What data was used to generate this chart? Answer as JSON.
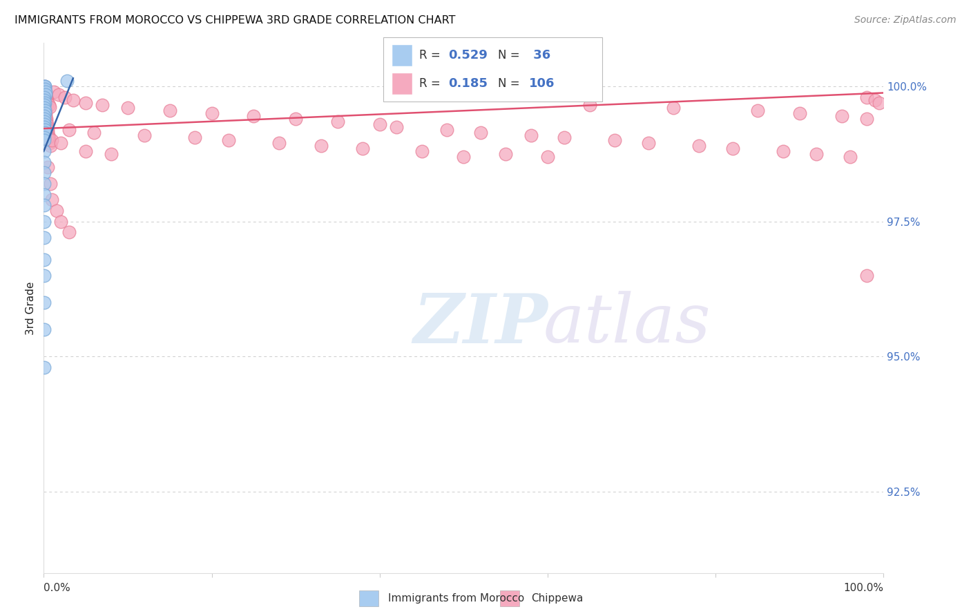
{
  "title": "IMMIGRANTS FROM MOROCCO VS CHIPPEWA 3RD GRADE CORRELATION CHART",
  "source": "Source: ZipAtlas.com",
  "ylabel": "3rd Grade",
  "ylabel_right_ticks": [
    92.5,
    95.0,
    97.5,
    100.0
  ],
  "ylabel_right_labels": [
    "92.5%",
    "95.0%",
    "97.5%",
    "100.0%"
  ],
  "xmin": 0.0,
  "xmax": 100.0,
  "ymin": 91.0,
  "ymax": 100.8,
  "blue_R": 0.529,
  "blue_N": 36,
  "pink_R": 0.185,
  "pink_N": 106,
  "blue_color": "#A8CCF0",
  "pink_color": "#F5AABF",
  "blue_edge_color": "#7BAAD8",
  "pink_edge_color": "#E88099",
  "blue_line_color": "#3464A8",
  "pink_line_color": "#E05070",
  "blue_label": "Immigrants from Morocco",
  "pink_label": "Chippewa",
  "grid_color": "#CCCCCC",
  "background_color": "#FFFFFF",
  "watermark_zip": "ZIP",
  "watermark_atlas": "atlas",
  "blue_line_x": [
    0.0,
    3.5
  ],
  "blue_line_y": [
    98.8,
    100.15
  ],
  "pink_line_x": [
    0.0,
    100.0
  ],
  "pink_line_y": [
    99.22,
    99.88
  ],
  "blue_dots_x": [
    0.08,
    0.12,
    0.15,
    0.18,
    0.2,
    0.22,
    0.08,
    0.1,
    0.13,
    0.08,
    0.09,
    0.11,
    0.14,
    0.08,
    0.09,
    0.1,
    0.08,
    0.09,
    0.11,
    0.13,
    0.08,
    0.09,
    0.08,
    0.08,
    0.09,
    0.08,
    0.08,
    0.08,
    0.08,
    0.08,
    0.08,
    0.08,
    0.08,
    0.08,
    0.08,
    2.8
  ],
  "blue_dots_y": [
    100.0,
    100.0,
    100.0,
    99.95,
    99.9,
    99.85,
    99.8,
    99.75,
    99.7,
    99.65,
    99.6,
    99.55,
    99.5,
    99.45,
    99.4,
    99.35,
    99.3,
    99.25,
    99.2,
    99.15,
    99.05,
    99.0,
    98.8,
    98.6,
    98.4,
    98.2,
    98.0,
    97.8,
    97.5,
    97.2,
    96.8,
    96.5,
    96.0,
    95.5,
    94.8,
    100.1
  ],
  "pink_dots_x": [
    0.05,
    0.08,
    0.1,
    0.12,
    0.15,
    0.18,
    0.2,
    0.22,
    0.25,
    0.28,
    0.3,
    0.35,
    0.4,
    0.45,
    0.5,
    0.55,
    0.6,
    0.65,
    0.7,
    0.8,
    0.1,
    0.15,
    0.2,
    0.25,
    0.3,
    0.4,
    0.08,
    0.12,
    0.18,
    0.25,
    1.2,
    1.8,
    2.5,
    3.5,
    5.0,
    7.0,
    10.0,
    15.0,
    20.0,
    25.0,
    30.0,
    35.0,
    40.0,
    42.0,
    48.0,
    52.0,
    58.0,
    62.0,
    68.0,
    72.0,
    78.0,
    82.0,
    88.0,
    92.0,
    96.0,
    98.0,
    99.0,
    99.5,
    65.0,
    75.0,
    85.0,
    90.0,
    95.0,
    98.0,
    0.5,
    0.8,
    1.0,
    1.5,
    2.0,
    3.0,
    0.3,
    0.5,
    1.0,
    2.0,
    5.0,
    8.0,
    50.0,
    98.0,
    0.08,
    0.1,
    0.12,
    0.15,
    0.18,
    0.2,
    0.22,
    0.25,
    0.28,
    0.3,
    0.35,
    0.4,
    0.5,
    0.6,
    0.7,
    3.0,
    6.0,
    12.0,
    18.0,
    22.0,
    28.0,
    33.0,
    38.0,
    45.0,
    55.0,
    60.0
  ],
  "pink_dots_y": [
    99.85,
    99.8,
    99.75,
    99.7,
    99.65,
    99.6,
    99.55,
    99.5,
    99.45,
    99.4,
    99.35,
    99.3,
    99.25,
    99.2,
    99.15,
    99.1,
    99.05,
    99.0,
    98.95,
    98.9,
    100.0,
    99.95,
    99.9,
    99.85,
    99.8,
    99.75,
    99.7,
    99.65,
    99.6,
    99.55,
    99.9,
    99.85,
    99.8,
    99.75,
    99.7,
    99.65,
    99.6,
    99.55,
    99.5,
    99.45,
    99.4,
    99.35,
    99.3,
    99.25,
    99.2,
    99.15,
    99.1,
    99.05,
    99.0,
    98.95,
    98.9,
    98.85,
    98.8,
    98.75,
    98.7,
    99.8,
    99.75,
    99.7,
    99.65,
    99.6,
    99.55,
    99.5,
    99.45,
    99.4,
    98.5,
    98.2,
    97.9,
    97.7,
    97.5,
    97.3,
    99.1,
    99.05,
    99.0,
    98.95,
    98.8,
    98.75,
    98.7,
    96.5,
    99.92,
    99.9,
    99.88,
    99.86,
    99.84,
    99.82,
    99.8,
    99.78,
    99.76,
    99.74,
    99.72,
    99.7,
    99.68,
    99.65,
    99.62,
    99.2,
    99.15,
    99.1,
    99.05,
    99.0,
    98.95,
    98.9,
    98.85,
    98.8,
    98.75,
    98.7
  ]
}
